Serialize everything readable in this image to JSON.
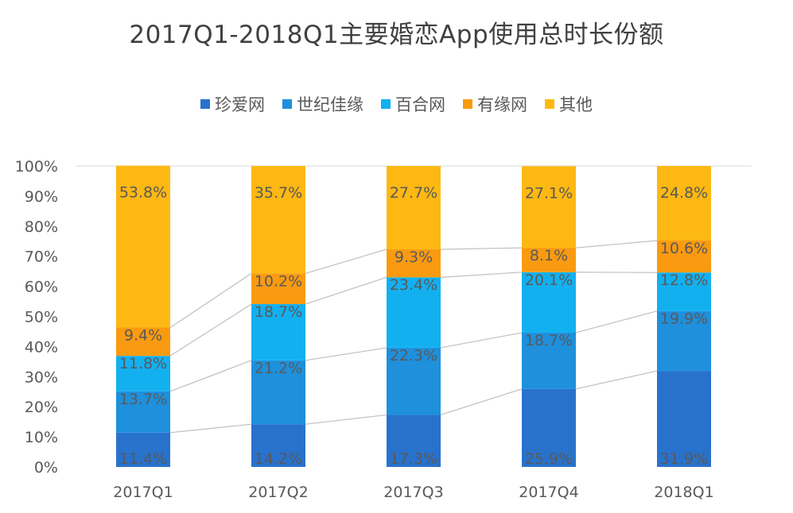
{
  "chart_data": {
    "type": "bar",
    "stacked": true,
    "title": "2017Q1-2018Q1主要婚恋App使用总时长份额",
    "categories": [
      "2017Q1",
      "2017Q2",
      "2017Q3",
      "2017Q4",
      "2018Q1"
    ],
    "series": [
      {
        "name": "珍爱网",
        "color": "#2872CC",
        "values": [
          11.4,
          14.2,
          17.3,
          25.9,
          31.9
        ]
      },
      {
        "name": "世纪佳缘",
        "color": "#1E90DC",
        "values": [
          13.7,
          21.2,
          22.3,
          18.7,
          19.9
        ]
      },
      {
        "name": "百合网",
        "color": "#13B0F0",
        "values": [
          11.8,
          18.7,
          23.4,
          20.1,
          12.8
        ]
      },
      {
        "name": "有缘网",
        "color": "#FA9A10",
        "values": [
          9.4,
          10.2,
          9.3,
          8.1,
          10.6
        ]
      },
      {
        "name": "其他",
        "color": "#FDB813",
        "values": [
          53.8,
          35.7,
          27.7,
          27.1,
          24.8
        ]
      }
    ],
    "yticks": [
      "0%",
      "10%",
      "20%",
      "30%",
      "40%",
      "50%",
      "60%",
      "70%",
      "80%",
      "90%",
      "100%"
    ],
    "ylim": [
      0,
      100
    ],
    "legend_position": "top",
    "series_lines": true
  }
}
